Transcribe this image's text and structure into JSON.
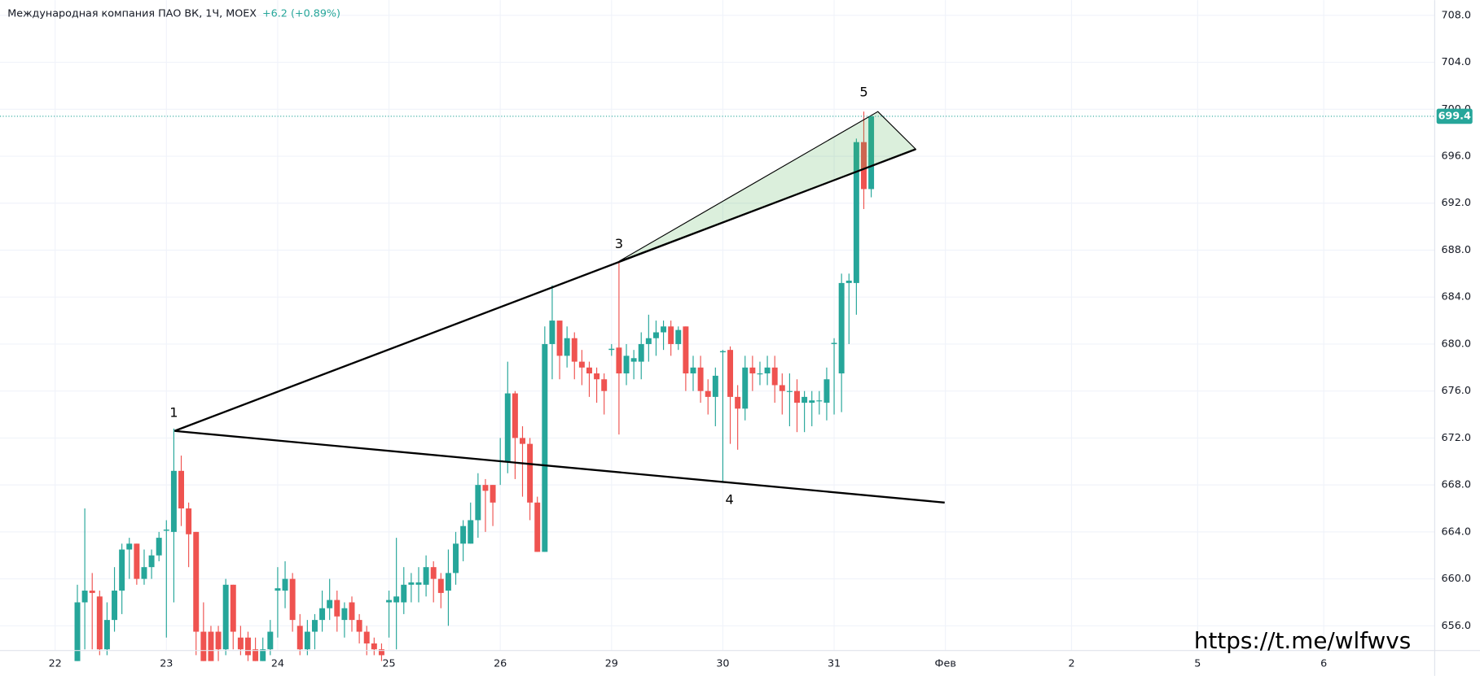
{
  "chart_data": {
    "type": "candlestick",
    "title": "Международная компания ПАО ВК, 1Ч, MOEX",
    "change": "+6.2 (+0.89%)",
    "watermark": "https://t.me/wlfwvs",
    "up_color": "#26a69a",
    "down_color": "#ef5350",
    "grid": true,
    "last": 699.4,
    "xlim": [
      -10.43,
      182.95
    ],
    "ylim": [
      653.9,
      709.3
    ],
    "xticks": [
      {
        "value": -3,
        "label": "22"
      },
      {
        "value": 12,
        "label": "23"
      },
      {
        "value": 27,
        "label": "24"
      },
      {
        "value": 42,
        "label": "25"
      },
      {
        "value": 57,
        "label": "26"
      },
      {
        "value": 72,
        "label": "29"
      },
      {
        "value": 87,
        "label": "30"
      },
      {
        "value": 102,
        "label": "31"
      },
      {
        "value": 117,
        "label": "Фев"
      },
      {
        "value": 134,
        "label": "2"
      },
      {
        "value": 151,
        "label": "5"
      },
      {
        "value": 168,
        "label": "6"
      }
    ],
    "yticks": [
      {
        "value": 656,
        "label": "656.0"
      },
      {
        "value": 660,
        "label": "660.0"
      },
      {
        "value": 664,
        "label": "664.0"
      },
      {
        "value": 668,
        "label": "668.0"
      },
      {
        "value": 672,
        "label": "672.0"
      },
      {
        "value": 676,
        "label": "676.0"
      },
      {
        "value": 680,
        "label": "680.0"
      },
      {
        "value": 684,
        "label": "684.0"
      },
      {
        "value": 688,
        "label": "688.0"
      },
      {
        "value": 692,
        "label": "692.0"
      },
      {
        "value": 696,
        "label": "696.0"
      },
      {
        "value": 700,
        "label": "700.0"
      },
      {
        "value": 704,
        "label": "704.0"
      },
      {
        "value": 708,
        "label": "708.0"
      }
    ],
    "x": [
      0,
      1,
      2,
      3,
      4,
      5,
      6,
      7,
      8,
      9,
      10,
      11,
      12,
      13,
      14,
      15,
      16,
      17,
      18,
      19,
      20,
      21,
      22,
      23,
      24,
      25,
      26,
      27,
      28,
      29,
      30,
      31,
      32,
      33,
      34,
      35,
      36,
      37,
      38,
      39,
      40,
      41,
      42,
      43,
      44,
      45,
      46,
      47,
      48,
      49,
      50,
      51,
      52,
      53,
      54,
      55,
      56,
      57,
      58,
      59,
      60,
      61,
      62,
      63,
      64,
      65,
      66,
      67,
      68,
      69,
      70,
      71,
      72,
      73,
      74,
      75,
      76,
      77,
      78,
      79,
      80,
      81,
      82,
      83,
      84,
      85,
      86,
      87,
      88,
      89,
      90,
      91,
      92,
      93,
      94,
      95,
      96,
      97,
      98,
      99,
      100,
      101,
      102,
      103,
      104,
      105,
      106,
      107
    ],
    "ohlc": [
      [
        653,
        659.5,
        653,
        658
      ],
      [
        658,
        666,
        654,
        659
      ],
      [
        659,
        660.5,
        654,
        658.8
      ],
      [
        658.5,
        659,
        653.5,
        654
      ],
      [
        654,
        658,
        653.5,
        656.5
      ],
      [
        656.5,
        661,
        655.5,
        659
      ],
      [
        659,
        663,
        657,
        662.5
      ],
      [
        662.5,
        663.5,
        660,
        663
      ],
      [
        663,
        663,
        659.5,
        660
      ],
      [
        660,
        662.5,
        659.5,
        661
      ],
      [
        661,
        662.5,
        660,
        662
      ],
      [
        662,
        664,
        661.5,
        663.5
      ],
      [
        664.1,
        665,
        655,
        664.2
      ],
      [
        664,
        672.8,
        658,
        669.2
      ],
      [
        669.2,
        670.5,
        664.5,
        666
      ],
      [
        666,
        666.5,
        661,
        663.8
      ],
      [
        664,
        664,
        653.5,
        655.5
      ],
      [
        655.5,
        658,
        653,
        653
      ],
      [
        655.5,
        656,
        653,
        653
      ],
      [
        655.5,
        656,
        653,
        654
      ],
      [
        654,
        660,
        653.5,
        659.5
      ],
      [
        659.5,
        659.5,
        654,
        655.5
      ],
      [
        655,
        656,
        653.5,
        654
      ],
      [
        655,
        655.5,
        653,
        653.5
      ],
      [
        654,
        655,
        653,
        653
      ],
      [
        653,
        655,
        653,
        654
      ],
      [
        654,
        656.5,
        653.5,
        655.5
      ],
      [
        659,
        661,
        655,
        659.2
      ],
      [
        659,
        661.5,
        657.5,
        660
      ],
      [
        660,
        660.5,
        655.5,
        656.5
      ],
      [
        656,
        657,
        653.5,
        654
      ],
      [
        654,
        656.5,
        653.5,
        655.5
      ],
      [
        655.5,
        657,
        654,
        656.5
      ],
      [
        656.5,
        659,
        655.5,
        657.5
      ],
      [
        657.5,
        660,
        656.5,
        658.2
      ],
      [
        658.2,
        659,
        655.5,
        656.8
      ],
      [
        656.5,
        658,
        655,
        657.5
      ],
      [
        658,
        658.5,
        655.5,
        656.5
      ],
      [
        656.5,
        657,
        654.5,
        655.5
      ],
      [
        655.5,
        656,
        653.5,
        654.5
      ],
      [
        654.5,
        655,
        653.5,
        654
      ],
      [
        654,
        654.5,
        653,
        653.5
      ],
      [
        658,
        659,
        655,
        658.2
      ],
      [
        658,
        663.5,
        654,
        658.5
      ],
      [
        658,
        661,
        657,
        659.5
      ],
      [
        659.5,
        660.5,
        658,
        659.7
      ],
      [
        659.5,
        661,
        658,
        659.7
      ],
      [
        659.5,
        662,
        658.5,
        661
      ],
      [
        661,
        661.5,
        658,
        660
      ],
      [
        660,
        660.5,
        657.5,
        658.8
      ],
      [
        659,
        662.5,
        656,
        660.5
      ],
      [
        660.5,
        664,
        659.5,
        663
      ],
      [
        663,
        665,
        661.5,
        664.5
      ],
      [
        663,
        666.5,
        663,
        665
      ],
      [
        665,
        669,
        663.5,
        668
      ],
      [
        668,
        668.5,
        664,
        667.5
      ],
      [
        668,
        668,
        664.5,
        666.5
      ],
      [
        670,
        672,
        668,
        670.1
      ],
      [
        670,
        678.5,
        669,
        675.8
      ],
      [
        675.8,
        676,
        668.5,
        672
      ],
      [
        672,
        673,
        667,
        671.5
      ],
      [
        671.5,
        672,
        665,
        666.5
      ],
      [
        666.5,
        667,
        662.3,
        662.3
      ],
      [
        662.3,
        681.5,
        662.3,
        680
      ],
      [
        680,
        685,
        677,
        682
      ],
      [
        682,
        682,
        677,
        679
      ],
      [
        679,
        681.5,
        678,
        680.5
      ],
      [
        680.5,
        681,
        677,
        678.5
      ],
      [
        678.5,
        679.5,
        676.5,
        678
      ],
      [
        678,
        678.5,
        675.5,
        677.5
      ],
      [
        677.5,
        678,
        675,
        677
      ],
      [
        677,
        677.5,
        674,
        676
      ],
      [
        679.5,
        680,
        679,
        679.6
      ],
      [
        679.7,
        687,
        672.3,
        677.5
      ],
      [
        677.5,
        680,
        676.5,
        679
      ],
      [
        678.5,
        679.5,
        677,
        678.8
      ],
      [
        678.5,
        681,
        677,
        680
      ],
      [
        680,
        682.5,
        678.5,
        680.5
      ],
      [
        680.5,
        682,
        679,
        681
      ],
      [
        681,
        682,
        679.5,
        681.5
      ],
      [
        681.5,
        682,
        679,
        680
      ],
      [
        680,
        681.5,
        679.5,
        681.2
      ],
      [
        681.5,
        681.5,
        676,
        677.5
      ],
      [
        677.5,
        679,
        676,
        678
      ],
      [
        678,
        679,
        675,
        676
      ],
      [
        676,
        677,
        674,
        675.5
      ],
      [
        675.5,
        678,
        673,
        677.3
      ],
      [
        679.3,
        679.5,
        668.2,
        679.4
      ],
      [
        679.5,
        679.8,
        671.5,
        675.5
      ],
      [
        675.5,
        676.5,
        671,
        674.5
      ],
      [
        674.5,
        679,
        673.5,
        678
      ],
      [
        678,
        679,
        676,
        677.5
      ],
      [
        677.5,
        678.5,
        676.5,
        677.5
      ],
      [
        677.5,
        679,
        676.5,
        678
      ],
      [
        678,
        679,
        675,
        676.5
      ],
      [
        676.5,
        677.5,
        674,
        676
      ],
      [
        676,
        677.5,
        673,
        676
      ],
      [
        676,
        677,
        672.5,
        675
      ],
      [
        675,
        676,
        672.5,
        675.5
      ],
      [
        675,
        676,
        673,
        675.2
      ],
      [
        675.2,
        676,
        674,
        675.2
      ],
      [
        675,
        678,
        673.5,
        677
      ],
      [
        680,
        680.5,
        674,
        680.1
      ],
      [
        677.5,
        686,
        674.2,
        685.2
      ],
      [
        685.2,
        686,
        680,
        685.4
      ],
      [
        685.2,
        697.5,
        682.5,
        697.2
      ],
      [
        697.2,
        699.8,
        691.5,
        693.2
      ],
      [
        693.2,
        699.4,
        692.5,
        699.4
      ]
    ],
    "trendlines": [
      {
        "x": [
          13.1,
          116.9
        ],
        "y": [
          672.6,
          666.5
        ]
      },
      {
        "x": [
          13.1,
          113.0
        ],
        "y": [
          672.6,
          696.6
        ]
      }
    ],
    "triangle": {
      "x": [
        73.0,
        107.9,
        113.0
      ],
      "y": [
        687.05,
        699.8,
        696.6
      ]
    },
    "annotations": [
      {
        "text": "1",
        "x": 13,
        "y": 674.1
      },
      {
        "text": "3",
        "x": 73,
        "y": 688.5
      },
      {
        "text": "4",
        "x": 87.9,
        "y": 666.7
      },
      {
        "text": "5",
        "x": 106,
        "y": 701.4
      }
    ]
  }
}
